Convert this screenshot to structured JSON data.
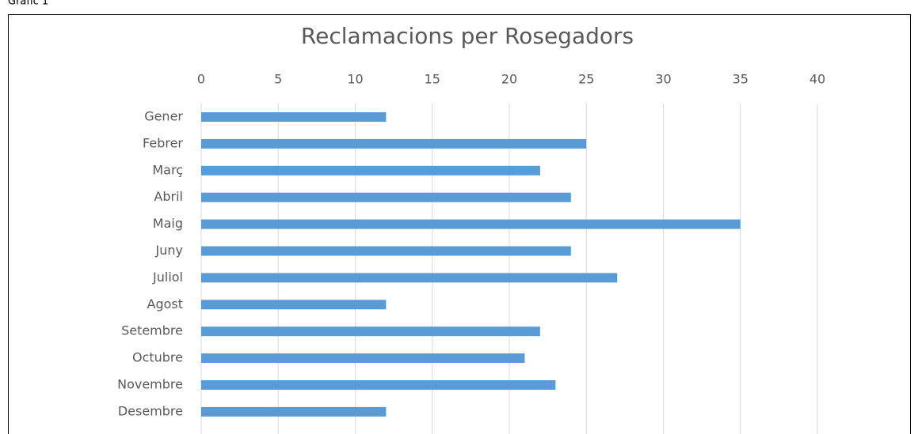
{
  "caption": "Gràfic 1",
  "chart_data": {
    "type": "bar",
    "orientation": "horizontal",
    "title": "Reclamacions per Rosegadors",
    "categories": [
      "Gener",
      "Febrer",
      "Març",
      "Abril",
      "Maig",
      "Juny",
      "Juliol",
      "Agost",
      "Setembre",
      "Octubre",
      "Novembre",
      "Desembre"
    ],
    "values": [
      12,
      25,
      22,
      24,
      35,
      24,
      27,
      12,
      22,
      21,
      23,
      12
    ],
    "color": "#5b9bd5",
    "xlim": [
      0,
      40
    ],
    "xticks": [
      0,
      5,
      10,
      15,
      20,
      25,
      30,
      35,
      40
    ],
    "grid": true
  }
}
